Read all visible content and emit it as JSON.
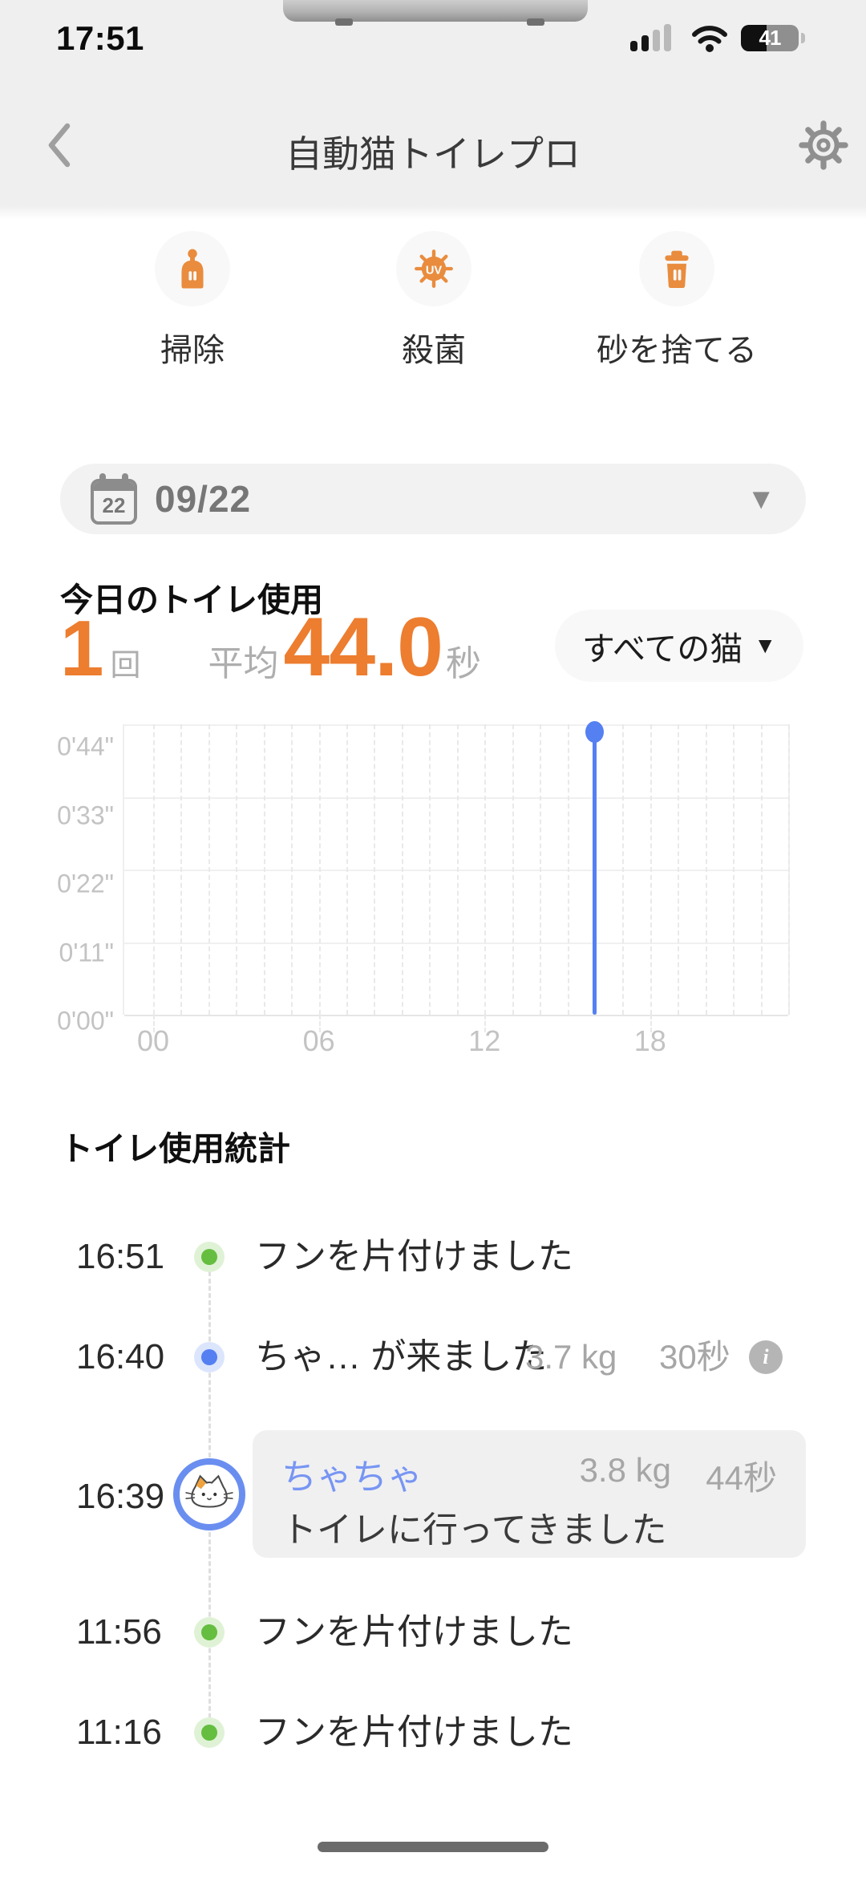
{
  "status_bar": {
    "time": "17:51",
    "battery": "41"
  },
  "nav": {
    "title": "自動猫トイレプロ"
  },
  "quick_actions": {
    "items": [
      {
        "label": "掃除",
        "icon": "scoop-icon"
      },
      {
        "label": "殺菌",
        "icon": "uv-icon",
        "badge": "UV"
      },
      {
        "label": "砂を捨てる",
        "icon": "trash-icon"
      }
    ]
  },
  "date_picker": {
    "day": "22",
    "date": "09/22",
    "caret": "▼"
  },
  "today": {
    "heading": "今日のトイレ使用",
    "count": "1",
    "count_unit": "回",
    "avg_label": "平均",
    "avg_value": "44.0",
    "avg_unit": "秒",
    "cat_filter_label": "すべての猫",
    "cat_filter_caret": "▼"
  },
  "chart_data": {
    "type": "scatter",
    "points": [
      {
        "time": "16:39",
        "duration_seconds": 44
      }
    ],
    "y_max_seconds": 44,
    "ytick_labels": [
      "0'44\"",
      "0'33\"",
      "0'22\"",
      "0'11\"",
      "0'00\""
    ],
    "xticks": [
      {
        "hour": 0,
        "label": "00"
      },
      {
        "hour": 6,
        "label": "06"
      },
      {
        "hour": 12,
        "label": "12"
      },
      {
        "hour": 18,
        "label": "18"
      }
    ],
    "x_hours_range": [
      0,
      23
    ],
    "grid": {
      "v_lines": 24,
      "v_style": "dashed",
      "h_lines": 5
    },
    "point_color": "#5580F2"
  },
  "usage_stats": {
    "heading": "トイレ使用統計"
  },
  "timeline": {
    "rows": [
      {
        "time": "16:51",
        "event": "フンを片付けました",
        "dot_color": "#65BE3F",
        "halo_color": "#dff2d6"
      },
      {
        "time": "16:40",
        "event": "ちゃ… が来ました",
        "weight": "3.7 kg",
        "duration": "30秒",
        "dot_color": "#5580F2",
        "halo_color": "#dbe5fc",
        "info_label": "i"
      },
      {
        "time": "16:39",
        "cat_name": "ちゃちゃ",
        "weight": "3.8 kg",
        "duration": "44秒",
        "message": "トイレに行ってきました"
      },
      {
        "time": "11:56",
        "event": "フンを片付けました",
        "dot_color": "#65BE3F",
        "halo_color": "#dff2d6"
      },
      {
        "time": "11:16",
        "event": "フンを片付けました",
        "dot_color": "#65BE3F",
        "halo_color": "#dff2d6"
      }
    ]
  },
  "colors": {
    "accent_orange": "#ED7D2F",
    "icon_orange": "#E98C3E",
    "accent_blue": "#5580F2",
    "green": "#65BE3F",
    "header_bg": "#EFEFEF",
    "card_bg": "#F0F0F1"
  }
}
